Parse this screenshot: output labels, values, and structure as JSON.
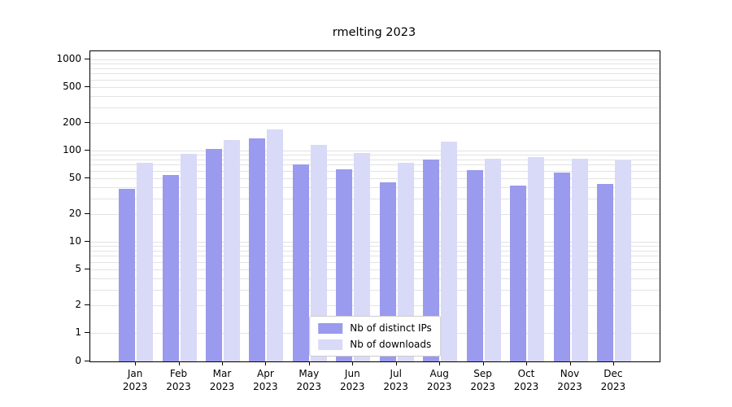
{
  "chart_data": {
    "type": "bar",
    "title": "rmelting 2023",
    "categories": [
      "Jan 2023",
      "Feb 2023",
      "Mar 2023",
      "Apr 2023",
      "May 2023",
      "Jun 2023",
      "Jul 2023",
      "Aug 2023",
      "Sep 2023",
      "Oct 2023",
      "Nov 2023",
      "Dec 2023"
    ],
    "x_tick_lines": [
      [
        "Jan",
        "2023"
      ],
      [
        "Feb",
        "2023"
      ],
      [
        "Mar",
        "2023"
      ],
      [
        "Apr",
        "2023"
      ],
      [
        "May",
        "2023"
      ],
      [
        "Jun",
        "2023"
      ],
      [
        "Jul",
        "2023"
      ],
      [
        "Aug",
        "2023"
      ],
      [
        "Sep",
        "2023"
      ],
      [
        "Oct",
        "2023"
      ],
      [
        "Nov",
        "2023"
      ],
      [
        "Dec",
        "2023"
      ]
    ],
    "series": [
      {
        "name": "Nb of distinct IPs",
        "color": "#9a9aee",
        "values": [
          38,
          54,
          105,
          135,
          70,
          62,
          45,
          80,
          61,
          41,
          57,
          43
        ]
      },
      {
        "name": "Nb of downloads",
        "color": "#d9d9f8",
        "values": [
          73,
          92,
          130,
          170,
          115,
          95,
          73,
          125,
          82,
          85,
          82,
          78
        ]
      }
    ],
    "yscale": "symlog",
    "ylim": [
      0,
      1000
    ],
    "yticks": [
      0,
      1,
      2,
      5,
      10,
      20,
      50,
      100,
      200,
      500,
      1000
    ],
    "grid": true,
    "legend_position": "lower center",
    "colors": {
      "axis": "#000000",
      "grid": "#e3e3e3",
      "background": "#ffffff",
      "legend_border": "#cccccc"
    }
  }
}
